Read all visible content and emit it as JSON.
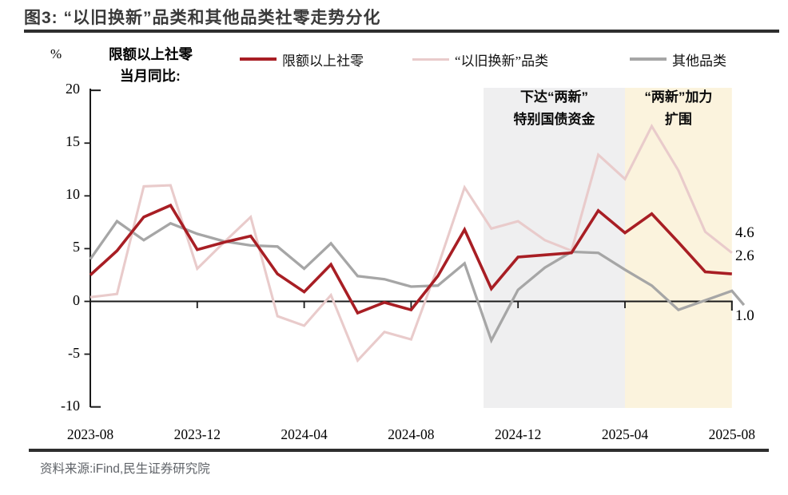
{
  "title": "图3: “以旧换新”品类和其他品类社零走势分化",
  "header": {
    "unit": "%",
    "note_line1": "限额以上社零",
    "note_line2": "当月同比:"
  },
  "legend": [
    {
      "label": "限额以上社零",
      "color": "#a81e24",
      "thickness": 4
    },
    {
      "label": "“以旧换新”品类",
      "color": "#e9cbcb",
      "thickness": 3
    },
    {
      "label": "其他品类",
      "color": "#a6a6a6",
      "thickness": 3.5
    }
  ],
  "chart_data": {
    "type": "line",
    "x": [
      "2023-08",
      "2023-09",
      "2023-10",
      "2023-11",
      "2023-12",
      "2024-01",
      "2024-02",
      "2024-03",
      "2024-04",
      "2024-05",
      "2024-06",
      "2024-07",
      "2024-08",
      "2024-09",
      "2024-10",
      "2024-11",
      "2024-12",
      "2025-01",
      "2025-02",
      "2025-03",
      "2025-04",
      "2025-05",
      "2025-06",
      "2025-07",
      "2025-08"
    ],
    "x_tick_labels": [
      "2023-08",
      "2023-12",
      "2024-04",
      "2024-08",
      "2024-12",
      "2025-04",
      "2025-08"
    ],
    "x_tick_indices": [
      0,
      4,
      8,
      12,
      16,
      20,
      24
    ],
    "ylim": [
      -10,
      20
    ],
    "y_ticks": [
      20,
      15,
      10,
      5,
      0,
      -5,
      -10
    ],
    "ylabel": "%",
    "grid": false,
    "legend_position": "top",
    "series": [
      {
        "name": "限额以上社零",
        "color": "#a81e24",
        "width": 3.6,
        "values": [
          2.5,
          4.8,
          8.0,
          9.1,
          4.9,
          5.6,
          6.2,
          2.6,
          0.9,
          3.5,
          -1.1,
          -0.1,
          -0.8,
          2.4,
          6.8,
          1.2,
          4.2,
          4.4,
          4.6,
          8.6,
          6.5,
          8.3,
          5.6,
          2.8,
          2.6
        ]
      },
      {
        "name": "“以旧换新”品类",
        "color": "#e9cbcb",
        "width": 3.1,
        "values": [
          0.4,
          0.7,
          10.9,
          11.0,
          3.1,
          5.6,
          8.0,
          -1.4,
          -2.3,
          0.6,
          -5.6,
          -2.9,
          -3.6,
          3.3,
          10.8,
          6.9,
          7.6,
          5.8,
          4.8,
          13.9,
          11.6,
          16.6,
          12.4,
          6.6,
          4.6
        ]
      },
      {
        "name": "其他品类",
        "color": "#a6a6a6",
        "width": 3.3,
        "values": [
          4.0,
          7.6,
          5.8,
          7.4,
          6.4,
          5.7,
          5.3,
          5.2,
          3.1,
          5.5,
          2.4,
          2.1,
          1.4,
          1.5,
          3.6,
          -3.7,
          1.1,
          3.2,
          4.7,
          4.6,
          3.0,
          1.5,
          -0.8,
          0.1,
          1.0
        ],
        "tail_point": {
          "index": 24.45,
          "value": -0.35
        }
      }
    ],
    "bands": [
      {
        "name": "band-special-bond-funds",
        "color": "#efeff0",
        "from_index": 14.71,
        "to_index": 20,
        "label_lines": [
          "下达“两新”",
          "特别国债资金"
        ]
      },
      {
        "name": "band-program-expansion",
        "color": "#fbf3dd",
        "from_index": 20,
        "to_index": 24,
        "label_lines": [
          "“两新”加力",
          "扩围"
        ]
      }
    ],
    "end_labels": [
      {
        "text": "4.6",
        "series": "“以旧换新”品类",
        "at_value": 6.4
      },
      {
        "text": "2.6",
        "series": "限额以上社零",
        "at_value": 4.2
      },
      {
        "text": "1.0",
        "series": "其他品类",
        "at_value": -1.5
      }
    ]
  },
  "source": "资料来源:iFind,民生证券研究院"
}
